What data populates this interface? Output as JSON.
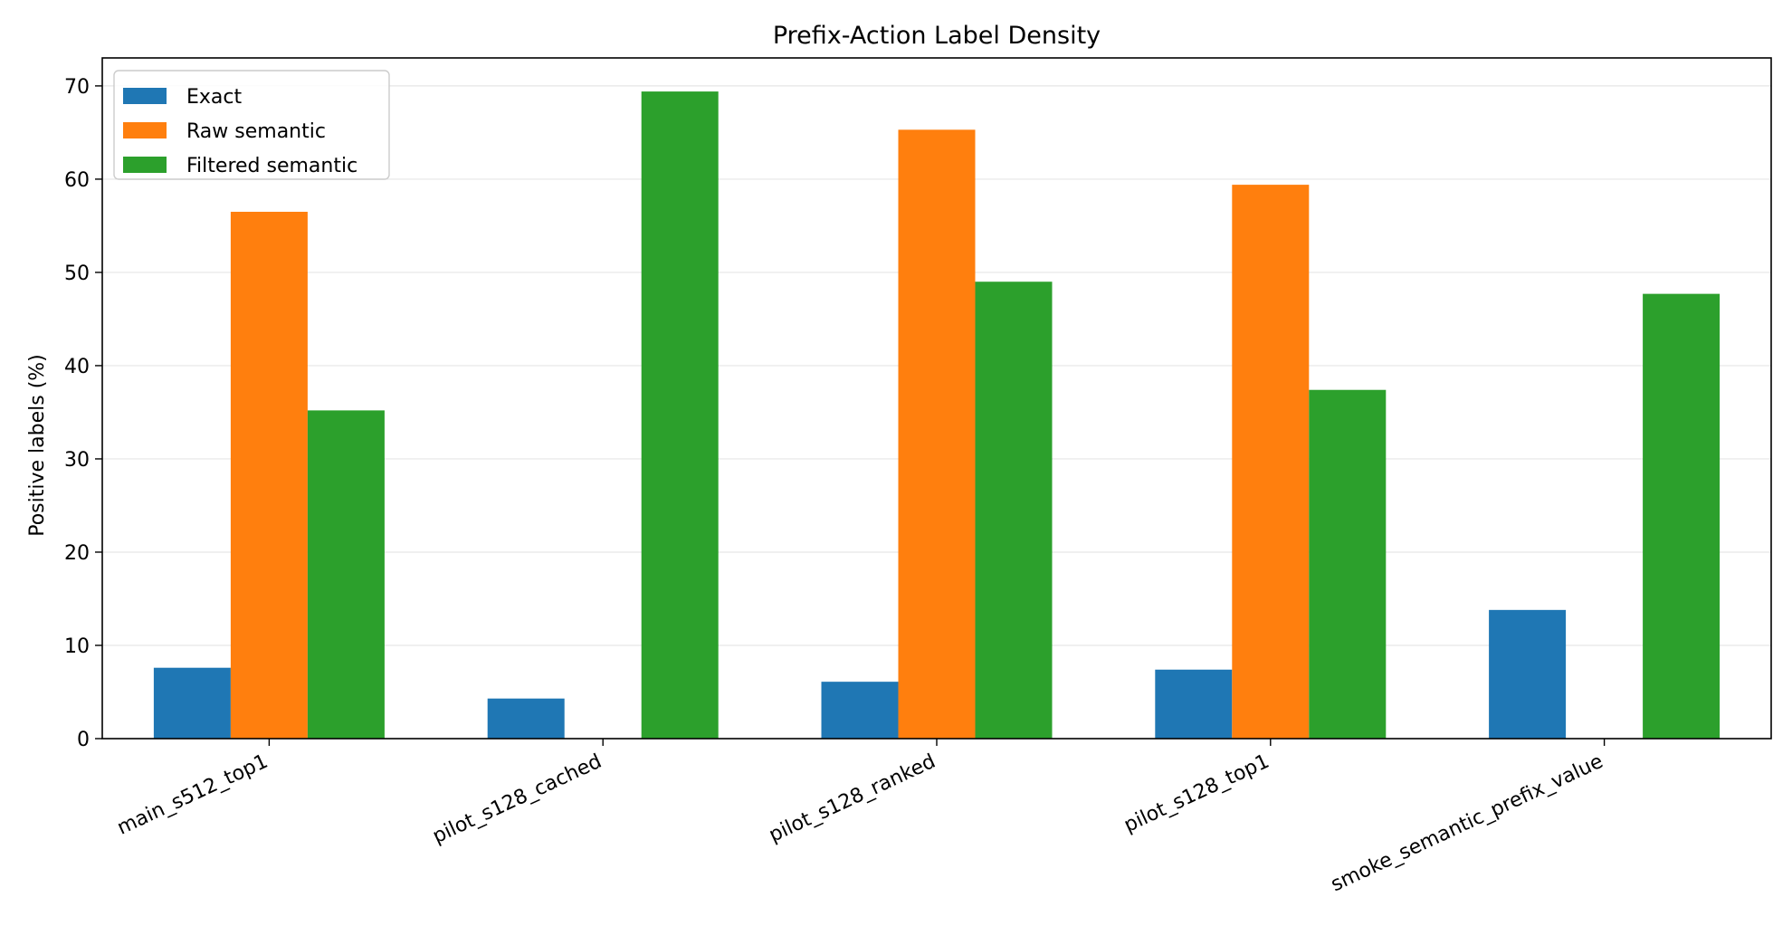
{
  "chart_data": {
    "type": "bar",
    "title": "Prefix-Action Label Density",
    "xlabel": "",
    "ylabel": "Positive labels (%)",
    "ylim": [
      0,
      73
    ],
    "yticks": [
      0,
      10,
      20,
      30,
      40,
      50,
      60,
      70
    ],
    "grid": "y",
    "legend_position": "top-left",
    "categories": [
      "main_s512_top1",
      "pilot_s128_cached",
      "pilot_s128_ranked",
      "pilot_s128_top1",
      "smoke_semantic_prefix_value"
    ],
    "series": [
      {
        "name": "Exact",
        "color": "#1f77b4",
        "values": [
          7.6,
          4.3,
          6.1,
          7.4,
          13.8
        ]
      },
      {
        "name": "Raw semantic",
        "color": "#ff7f0e",
        "values": [
          56.5,
          null,
          65.3,
          59.4,
          null
        ]
      },
      {
        "name": "Filtered semantic",
        "color": "#2ca02c",
        "values": [
          35.2,
          69.4,
          49.0,
          37.4,
          47.7
        ]
      }
    ]
  }
}
